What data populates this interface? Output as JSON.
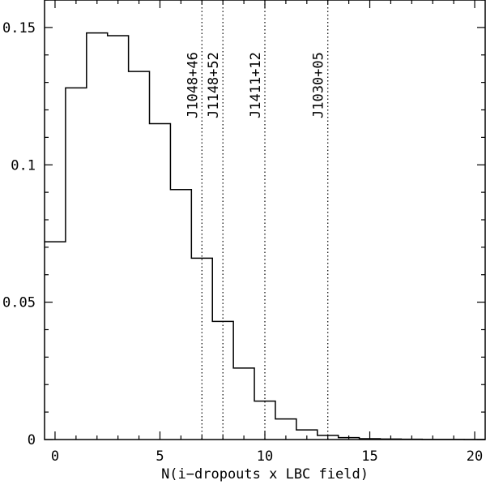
{
  "chart_data": {
    "type": "histogram",
    "title": "",
    "xlabel": "N(i−dropouts x LBC field)",
    "ylabel": "",
    "xlim": [
      -0.5,
      20.5
    ],
    "ylim": [
      0,
      0.16
    ],
    "grid": false,
    "legend": "none",
    "bin_width": 1,
    "bin_centers": [
      0,
      1,
      2,
      3,
      4,
      5,
      6,
      7,
      8,
      9,
      10,
      11,
      12,
      13,
      14,
      15,
      16,
      17,
      18,
      19,
      20
    ],
    "values": [
      0.072,
      0.128,
      0.148,
      0.147,
      0.134,
      0.115,
      0.091,
      0.066,
      0.043,
      0.026,
      0.014,
      0.0075,
      0.0035,
      0.0015,
      0.0007,
      0.0003,
      0.0002,
      0.0001,
      5e-05,
      2e-05,
      1e-05
    ],
    "x_ticks": [
      0,
      5,
      10,
      15,
      20
    ],
    "x_tick_labels": [
      "0",
      "5",
      "10",
      "15",
      "20"
    ],
    "y_ticks": [
      0,
      0.05,
      0.1,
      0.15
    ],
    "y_tick_labels": [
      "0",
      "0.05",
      "0.1",
      "0.15"
    ],
    "vertical_lines": [
      {
        "x": 7,
        "label": "J1048+46"
      },
      {
        "x": 8,
        "label": "J1148+52"
      },
      {
        "x": 10,
        "label": "J1411+12"
      },
      {
        "x": 13,
        "label": "J1030+05"
      }
    ],
    "line_color": "#000000"
  }
}
